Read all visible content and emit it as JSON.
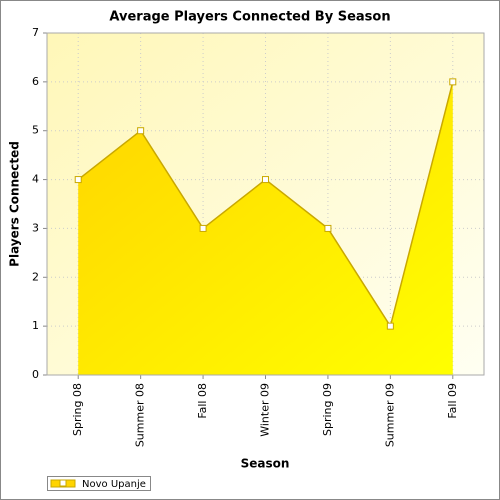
{
  "chart_data": {
    "type": "area",
    "title": "Average Players Connected By Season",
    "x_label": "Season",
    "y_label": "Players Connected",
    "categories": [
      "Spring 08",
      "Summer 08",
      "Fall 08",
      "Winter 09",
      "Spring 09",
      "Summer 09",
      "Fall 09"
    ],
    "series": [
      {
        "name": "Novo Upanje",
        "color": "#c9a800",
        "values": [
          4,
          5,
          3,
          4,
          3,
          1,
          6
        ]
      }
    ],
    "ylim": [
      0,
      7
    ],
    "yticks": [
      0,
      1,
      2,
      3,
      4,
      5,
      6,
      7
    ],
    "grid": true,
    "legend": "bottom-left"
  }
}
